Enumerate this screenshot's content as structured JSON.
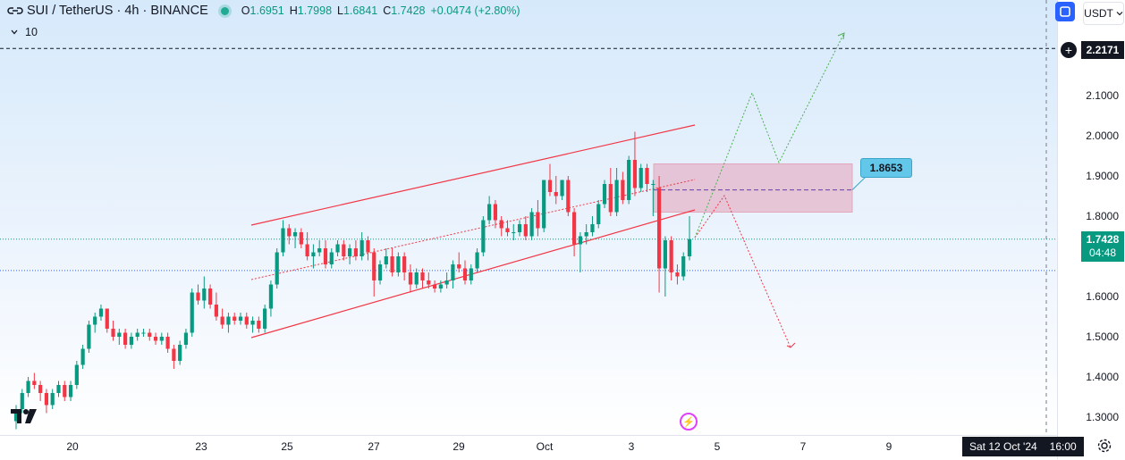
{
  "header": {
    "symbol": "SUI / TetherUS · 4h · BINANCE",
    "ohlc": {
      "o_label": "O",
      "o": "1.6951",
      "h_label": "H",
      "h": "1.7998",
      "l_label": "L",
      "l": "1.6841",
      "c_label": "C",
      "c": "1.7428",
      "change": "+0.0474 (+2.80%)"
    },
    "volume": "10"
  },
  "toolbar": {
    "currency": "USDT",
    "currency_icon": "chevron-down-icon",
    "compare_icon": "compare-icon"
  },
  "badges": {
    "top_price": "2.2171",
    "current_price": "1.7428",
    "countdown": "04:48",
    "callout_price": "1.8653",
    "date_label": "Sat 12 Oct '24",
    "time_label": "16:00"
  },
  "colors": {
    "up": "#089981",
    "down": "#f23645",
    "channel": "#f23645",
    "zone": "#e3a7bd",
    "bull_path": "#4caf50",
    "bear_path": "#f23645",
    "accent": "#2962ff"
  },
  "chart_data": {
    "type": "candlestick",
    "symbol": "SUI / TetherUS",
    "interval": "4h",
    "exchange": "BINANCE",
    "ylim": [
      1.27,
      2.32
    ],
    "y_ticks": [
      "1.3000",
      "1.4000",
      "1.5000",
      "1.6000",
      "1.7000",
      "1.8000",
      "1.9000",
      "2.0000",
      "2.1000"
    ],
    "x_ticks": [
      "20",
      "23",
      "25",
      "27",
      "29",
      "Oct",
      "3",
      "5",
      "7",
      "9"
    ],
    "candles": [
      {
        "o": 1.29,
        "h": 1.33,
        "l": 1.27,
        "c": 1.32
      },
      {
        "o": 1.32,
        "h": 1.37,
        "l": 1.31,
        "c": 1.36
      },
      {
        "o": 1.36,
        "h": 1.4,
        "l": 1.35,
        "c": 1.39
      },
      {
        "o": 1.39,
        "h": 1.41,
        "l": 1.37,
        "c": 1.38
      },
      {
        "o": 1.38,
        "h": 1.39,
        "l": 1.34,
        "c": 1.36
      },
      {
        "o": 1.36,
        "h": 1.37,
        "l": 1.31,
        "c": 1.33
      },
      {
        "o": 1.33,
        "h": 1.37,
        "l": 1.32,
        "c": 1.36
      },
      {
        "o": 1.36,
        "h": 1.39,
        "l": 1.35,
        "c": 1.38
      },
      {
        "o": 1.38,
        "h": 1.39,
        "l": 1.34,
        "c": 1.35
      },
      {
        "o": 1.35,
        "h": 1.39,
        "l": 1.34,
        "c": 1.38
      },
      {
        "o": 1.38,
        "h": 1.44,
        "l": 1.37,
        "c": 1.43
      },
      {
        "o": 1.43,
        "h": 1.48,
        "l": 1.42,
        "c": 1.47
      },
      {
        "o": 1.47,
        "h": 1.54,
        "l": 1.46,
        "c": 1.53
      },
      {
        "o": 1.53,
        "h": 1.56,
        "l": 1.51,
        "c": 1.55
      },
      {
        "o": 1.55,
        "h": 1.58,
        "l": 1.54,
        "c": 1.57
      },
      {
        "o": 1.57,
        "h": 1.57,
        "l": 1.51,
        "c": 1.52
      },
      {
        "o": 1.52,
        "h": 1.54,
        "l": 1.49,
        "c": 1.5
      },
      {
        "o": 1.5,
        "h": 1.52,
        "l": 1.48,
        "c": 1.51
      },
      {
        "o": 1.51,
        "h": 1.52,
        "l": 1.47,
        "c": 1.48
      },
      {
        "o": 1.48,
        "h": 1.51,
        "l": 1.47,
        "c": 1.5
      },
      {
        "o": 1.5,
        "h": 1.52,
        "l": 1.49,
        "c": 1.51
      },
      {
        "o": 1.51,
        "h": 1.52,
        "l": 1.5,
        "c": 1.51
      },
      {
        "o": 1.51,
        "h": 1.52,
        "l": 1.49,
        "c": 1.5
      },
      {
        "o": 1.5,
        "h": 1.51,
        "l": 1.48,
        "c": 1.49
      },
      {
        "o": 1.49,
        "h": 1.51,
        "l": 1.48,
        "c": 1.5
      },
      {
        "o": 1.5,
        "h": 1.51,
        "l": 1.46,
        "c": 1.47
      },
      {
        "o": 1.47,
        "h": 1.48,
        "l": 1.42,
        "c": 1.44
      },
      {
        "o": 1.44,
        "h": 1.49,
        "l": 1.43,
        "c": 1.48
      },
      {
        "o": 1.48,
        "h": 1.52,
        "l": 1.47,
        "c": 1.51
      },
      {
        "o": 1.51,
        "h": 1.62,
        "l": 1.5,
        "c": 1.61
      },
      {
        "o": 1.61,
        "h": 1.63,
        "l": 1.58,
        "c": 1.59
      },
      {
        "o": 1.59,
        "h": 1.65,
        "l": 1.57,
        "c": 1.62
      },
      {
        "o": 1.62,
        "h": 1.63,
        "l": 1.57,
        "c": 1.58
      },
      {
        "o": 1.58,
        "h": 1.61,
        "l": 1.54,
        "c": 1.55
      },
      {
        "o": 1.55,
        "h": 1.57,
        "l": 1.52,
        "c": 1.53
      },
      {
        "o": 1.53,
        "h": 1.56,
        "l": 1.51,
        "c": 1.55
      },
      {
        "o": 1.55,
        "h": 1.56,
        "l": 1.53,
        "c": 1.54
      },
      {
        "o": 1.54,
        "h": 1.56,
        "l": 1.53,
        "c": 1.55
      },
      {
        "o": 1.55,
        "h": 1.56,
        "l": 1.52,
        "c": 1.53
      },
      {
        "o": 1.53,
        "h": 1.55,
        "l": 1.51,
        "c": 1.54
      },
      {
        "o": 1.54,
        "h": 1.55,
        "l": 1.51,
        "c": 1.52
      },
      {
        "o": 1.52,
        "h": 1.58,
        "l": 1.51,
        "c": 1.57
      },
      {
        "o": 1.57,
        "h": 1.64,
        "l": 1.55,
        "c": 1.63
      },
      {
        "o": 1.63,
        "h": 1.72,
        "l": 1.62,
        "c": 1.71
      },
      {
        "o": 1.71,
        "h": 1.79,
        "l": 1.7,
        "c": 1.77
      },
      {
        "o": 1.77,
        "h": 1.78,
        "l": 1.73,
        "c": 1.75
      },
      {
        "o": 1.75,
        "h": 1.77,
        "l": 1.72,
        "c": 1.76
      },
      {
        "o": 1.76,
        "h": 1.77,
        "l": 1.72,
        "c": 1.73
      },
      {
        "o": 1.73,
        "h": 1.76,
        "l": 1.69,
        "c": 1.7
      },
      {
        "o": 1.7,
        "h": 1.73,
        "l": 1.67,
        "c": 1.71
      },
      {
        "o": 1.71,
        "h": 1.74,
        "l": 1.7,
        "c": 1.72
      },
      {
        "o": 1.72,
        "h": 1.74,
        "l": 1.67,
        "c": 1.68
      },
      {
        "o": 1.68,
        "h": 1.72,
        "l": 1.67,
        "c": 1.71
      },
      {
        "o": 1.71,
        "h": 1.74,
        "l": 1.7,
        "c": 1.73
      },
      {
        "o": 1.73,
        "h": 1.74,
        "l": 1.69,
        "c": 1.7
      },
      {
        "o": 1.7,
        "h": 1.73,
        "l": 1.68,
        "c": 1.72
      },
      {
        "o": 1.72,
        "h": 1.74,
        "l": 1.69,
        "c": 1.7
      },
      {
        "o": 1.7,
        "h": 1.76,
        "l": 1.69,
        "c": 1.74
      },
      {
        "o": 1.74,
        "h": 1.75,
        "l": 1.69,
        "c": 1.71
      },
      {
        "o": 1.71,
        "h": 1.72,
        "l": 1.6,
        "c": 1.64
      },
      {
        "o": 1.64,
        "h": 1.69,
        "l": 1.63,
        "c": 1.68
      },
      {
        "o": 1.68,
        "h": 1.72,
        "l": 1.67,
        "c": 1.7
      },
      {
        "o": 1.7,
        "h": 1.72,
        "l": 1.65,
        "c": 1.66
      },
      {
        "o": 1.66,
        "h": 1.71,
        "l": 1.65,
        "c": 1.7
      },
      {
        "o": 1.7,
        "h": 1.71,
        "l": 1.64,
        "c": 1.66
      },
      {
        "o": 1.66,
        "h": 1.68,
        "l": 1.61,
        "c": 1.63
      },
      {
        "o": 1.63,
        "h": 1.67,
        "l": 1.62,
        "c": 1.66
      },
      {
        "o": 1.66,
        "h": 1.67,
        "l": 1.62,
        "c": 1.64
      },
      {
        "o": 1.64,
        "h": 1.66,
        "l": 1.62,
        "c": 1.63
      },
      {
        "o": 1.63,
        "h": 1.64,
        "l": 1.61,
        "c": 1.62
      },
      {
        "o": 1.62,
        "h": 1.64,
        "l": 1.61,
        "c": 1.63
      },
      {
        "o": 1.63,
        "h": 1.66,
        "l": 1.62,
        "c": 1.64
      },
      {
        "o": 1.64,
        "h": 1.69,
        "l": 1.62,
        "c": 1.68
      },
      {
        "o": 1.68,
        "h": 1.71,
        "l": 1.66,
        "c": 1.67
      },
      {
        "o": 1.67,
        "h": 1.69,
        "l": 1.63,
        "c": 1.64
      },
      {
        "o": 1.64,
        "h": 1.68,
        "l": 1.63,
        "c": 1.67
      },
      {
        "o": 1.67,
        "h": 1.72,
        "l": 1.66,
        "c": 1.71
      },
      {
        "o": 1.71,
        "h": 1.8,
        "l": 1.7,
        "c": 1.79
      },
      {
        "o": 1.79,
        "h": 1.85,
        "l": 1.78,
        "c": 1.83
      },
      {
        "o": 1.83,
        "h": 1.84,
        "l": 1.77,
        "c": 1.79
      },
      {
        "o": 1.79,
        "h": 1.8,
        "l": 1.75,
        "c": 1.77
      },
      {
        "o": 1.77,
        "h": 1.79,
        "l": 1.75,
        "c": 1.76
      },
      {
        "o": 1.76,
        "h": 1.78,
        "l": 1.74,
        "c": 1.76
      },
      {
        "o": 1.76,
        "h": 1.79,
        "l": 1.75,
        "c": 1.78
      },
      {
        "o": 1.78,
        "h": 1.8,
        "l": 1.74,
        "c": 1.75
      },
      {
        "o": 1.75,
        "h": 1.82,
        "l": 1.74,
        "c": 1.81
      },
      {
        "o": 1.81,
        "h": 1.84,
        "l": 1.75,
        "c": 1.77
      },
      {
        "o": 1.77,
        "h": 1.88,
        "l": 1.76,
        "c": 1.89
      },
      {
        "o": 1.89,
        "h": 1.93,
        "l": 1.85,
        "c": 1.86
      },
      {
        "o": 1.86,
        "h": 1.9,
        "l": 1.83,
        "c": 1.85
      },
      {
        "o": 1.85,
        "h": 1.89,
        "l": 1.84,
        "c": 1.89
      },
      {
        "o": 1.89,
        "h": 1.9,
        "l": 1.8,
        "c": 1.81
      },
      {
        "o": 1.81,
        "h": 1.82,
        "l": 1.7,
        "c": 1.73
      },
      {
        "o": 1.73,
        "h": 1.76,
        "l": 1.66,
        "c": 1.75
      },
      {
        "o": 1.75,
        "h": 1.78,
        "l": 1.73,
        "c": 1.76
      },
      {
        "o": 1.76,
        "h": 1.8,
        "l": 1.75,
        "c": 1.78
      },
      {
        "o": 1.78,
        "h": 1.84,
        "l": 1.77,
        "c": 1.83
      },
      {
        "o": 1.83,
        "h": 1.89,
        "l": 1.82,
        "c": 1.88
      },
      {
        "o": 1.88,
        "h": 1.92,
        "l": 1.8,
        "c": 1.81
      },
      {
        "o": 1.81,
        "h": 1.92,
        "l": 1.8,
        "c": 1.89
      },
      {
        "o": 1.89,
        "h": 1.91,
        "l": 1.83,
        "c": 1.84
      },
      {
        "o": 1.84,
        "h": 1.95,
        "l": 1.83,
        "c": 1.94
      },
      {
        "o": 1.94,
        "h": 2.01,
        "l": 1.85,
        "c": 1.87
      },
      {
        "o": 1.87,
        "h": 1.93,
        "l": 1.86,
        "c": 1.92
      },
      {
        "o": 1.92,
        "h": 1.93,
        "l": 1.86,
        "c": 1.88
      },
      {
        "o": 1.88,
        "h": 1.89,
        "l": 1.8,
        "c": 1.88
      },
      {
        "o": 1.87,
        "h": 1.9,
        "l": 1.61,
        "c": 1.67
      },
      {
        "o": 1.67,
        "h": 1.75,
        "l": 1.6,
        "c": 1.74
      },
      {
        "o": 1.74,
        "h": 1.75,
        "l": 1.64,
        "c": 1.66
      },
      {
        "o": 1.66,
        "h": 1.68,
        "l": 1.63,
        "c": 1.65
      },
      {
        "o": 1.65,
        "h": 1.71,
        "l": 1.64,
        "c": 1.7
      },
      {
        "o": 1.7,
        "h": 1.8,
        "l": 1.69,
        "c": 1.7428
      }
    ],
    "annotations": {
      "channel_upper": [
        [
          1.79,
          2.03
        ]
      ],
      "horizontal_level": 1.6648,
      "dashed_level": 2.2171,
      "zone": [
        1.81,
        1.93
      ],
      "zone_mid": 1.8653
    }
  }
}
